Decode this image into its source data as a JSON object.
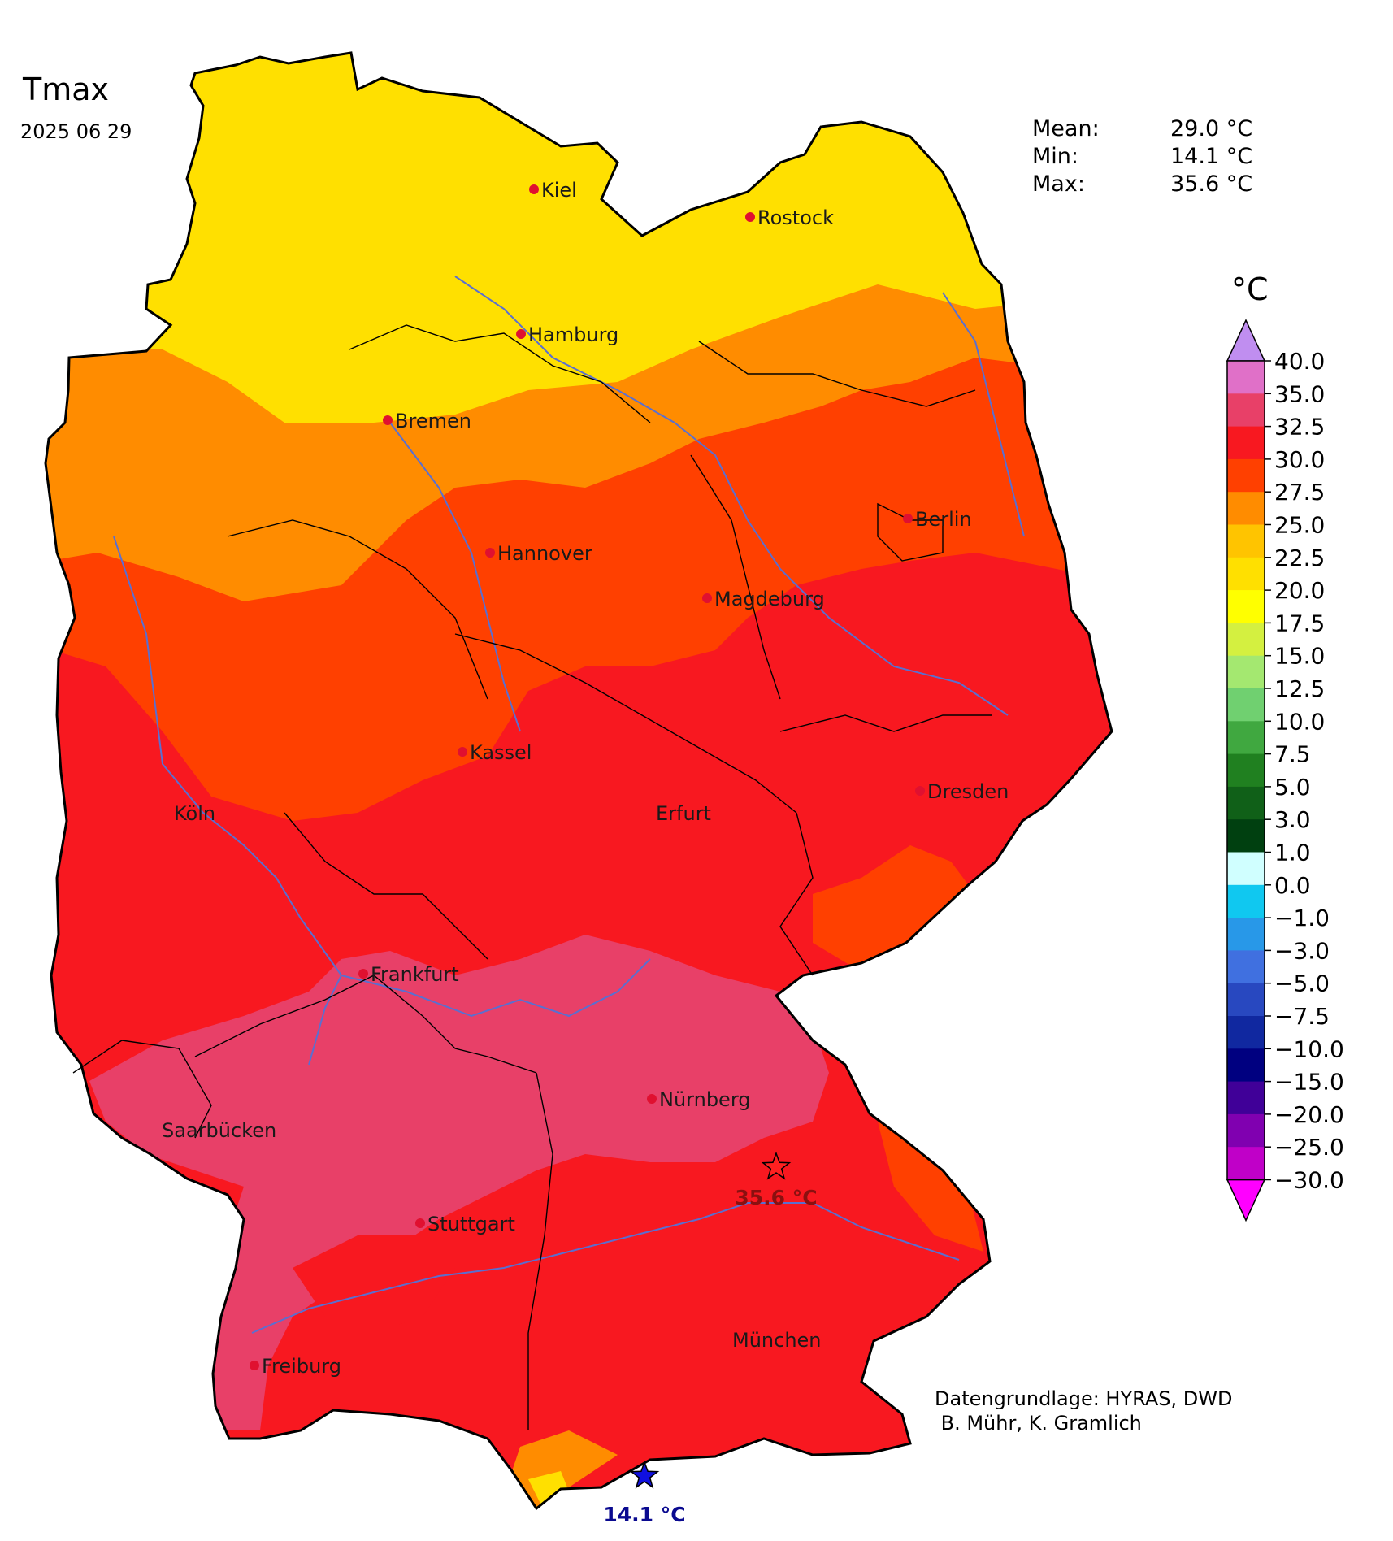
{
  "title": "Tmax",
  "date": "2025 06 29",
  "stats": [
    {
      "label": "Mean:",
      "value": "29.0 °C"
    },
    {
      "label": "Min:",
      "value": "14.1 °C"
    },
    {
      "label": "Max:",
      "value": "35.6 °C"
    }
  ],
  "credits": {
    "line1": "Datengrundlage: HYRAS, DWD",
    "line2": " B. Mühr, K. Gramlich"
  },
  "colorbar": {
    "unit": "°C",
    "over_color": "#c08ef0",
    "under_color": "#ff00ff",
    "bands": [
      {
        "color": "#e070c8"
      },
      {
        "color": "#e84068"
      },
      {
        "color": "#f81820"
      },
      {
        "color": "#ff4000"
      },
      {
        "color": "#ff8c00"
      },
      {
        "color": "#ffc400"
      },
      {
        "color": "#ffe000"
      },
      {
        "color": "#ffff00"
      },
      {
        "color": "#d4f040"
      },
      {
        "color": "#a4e870"
      },
      {
        "color": "#70d070"
      },
      {
        "color": "#40a840"
      },
      {
        "color": "#208020"
      },
      {
        "color": "#106018"
      },
      {
        "color": "#004010"
      },
      {
        "color": "#d0ffff"
      },
      {
        "color": "#10c8f0"
      },
      {
        "color": "#2898e8"
      },
      {
        "color": "#4070e0"
      },
      {
        "color": "#2848c0"
      },
      {
        "color": "#1028a0"
      },
      {
        "color": "#000080"
      },
      {
        "color": "#400098"
      },
      {
        "color": "#8000b0"
      },
      {
        "color": "#c000c8"
      }
    ],
    "tick_labels": [
      "40.0",
      "35.0",
      "32.5",
      "30.0",
      "27.5",
      "25.0",
      "22.5",
      "20.0",
      "17.5",
      "15.0",
      "12.5",
      "10.0",
      "7.5",
      "5.0",
      "3.0",
      "1.0",
      "0.0",
      "−1.0",
      "−3.0",
      "−5.0",
      "−7.5",
      "−10.0",
      "−15.0",
      "−20.0",
      "−25.0",
      "−30.0"
    ]
  },
  "cities": [
    {
      "name": "Kiel"
    },
    {
      "name": "Rostock"
    },
    {
      "name": "Hamburg"
    },
    {
      "name": "Bremen"
    },
    {
      "name": "Berlin"
    },
    {
      "name": "Hannover"
    },
    {
      "name": "Magdeburg"
    },
    {
      "name": "Kassel"
    },
    {
      "name": "Köln"
    },
    {
      "name": "Erfurt"
    },
    {
      "name": "Dresden"
    },
    {
      "name": "Frankfurt"
    },
    {
      "name": "Nürnberg"
    },
    {
      "name": "Saarbücken"
    },
    {
      "name": "Stuttgart"
    },
    {
      "name": "München"
    },
    {
      "name": "Freiburg"
    }
  ],
  "max_marker": {
    "label": "35.6 °C",
    "color": "#ff2020"
  },
  "min_marker": {
    "label": "14.1 °C",
    "color": "#1010e0"
  },
  "map_colors": {
    "band_15": "#ffe000",
    "band_25": "#ff8c00",
    "band_27": "#ff4000",
    "band_30": "#f81820",
    "band_32": "#e84068",
    "band_35": "#e070c8",
    "river": "#5a6fd0",
    "border": "#000000"
  }
}
